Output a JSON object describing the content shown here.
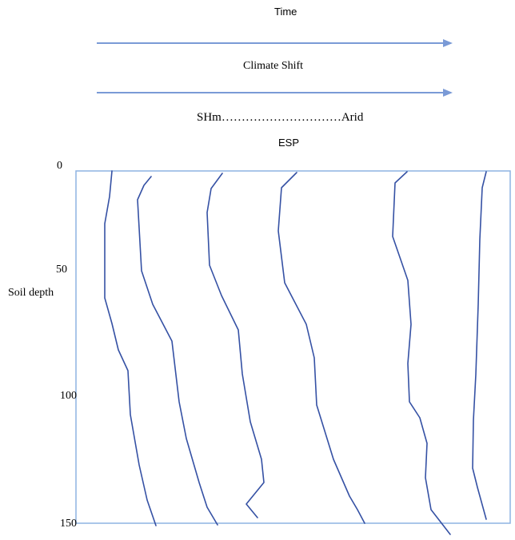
{
  "labels": {
    "time": "Time",
    "climate_shift": "Climate Shift",
    "gradient": "SHm…………………………Arid",
    "property": "ESP",
    "depth_axis": "Soil depth"
  },
  "depth_ticks": [
    "0",
    "50",
    "100",
    "150"
  ],
  "colors": {
    "arrow": "#7a9ad6",
    "frame": "#8db3e2",
    "profile": "#3551a4",
    "text": "#000000"
  },
  "icons": {
    "arrow": "right-arrow-icon"
  }
}
